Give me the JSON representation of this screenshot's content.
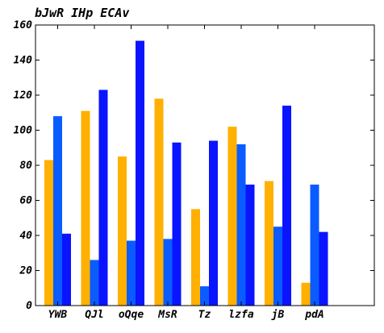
{
  "chart_data": {
    "type": "bar",
    "title": "bJwR IHp ECAv",
    "xlabel": "",
    "ylabel": "",
    "categories": [
      "YWB",
      "QJl",
      "oQqe",
      "MsR",
      "Tz",
      "lzfa",
      "jB",
      "pdA"
    ],
    "series": [
      {
        "values": [
          83,
          111,
          85,
          118,
          55,
          102,
          71,
          13
        ],
        "color": "#ffb000"
      },
      {
        "values": [
          108,
          26,
          37,
          38,
          11,
          92,
          45,
          69
        ],
        "color": "#0a5cff"
      },
      {
        "values": [
          41,
          123,
          151,
          93,
          94,
          69,
          114,
          42
        ],
        "color": "#0a14ff"
      }
    ],
    "ylim": [
      0,
      160
    ],
    "yticks": [
      0,
      20,
      40,
      60,
      80,
      100,
      120,
      140,
      160
    ],
    "grid": false,
    "legend": "none"
  }
}
